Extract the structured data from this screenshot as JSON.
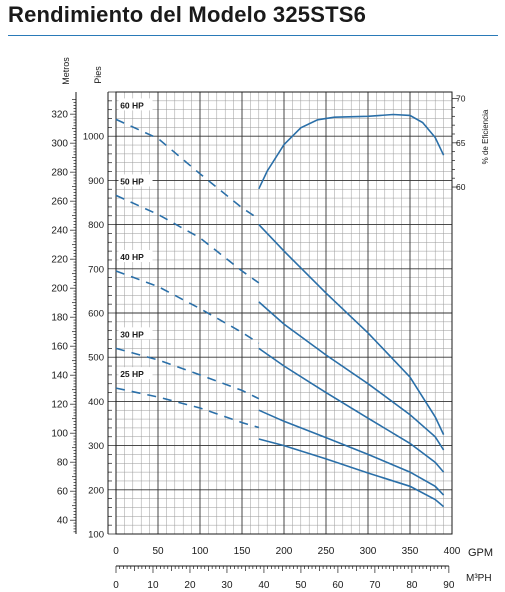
{
  "title": "Rendimiento del Modelo 325STS6",
  "chart_data": {
    "type": "line",
    "title": "Rendimiento del Modelo 325STS6",
    "colors": {
      "curves": "#2a6fa8",
      "grid": "#555555",
      "title_rule": "#2a7ab8"
    },
    "grid": true,
    "x_axis_primary": {
      "label": "GPM",
      "range": [
        0,
        400
      ],
      "ticks": [
        0,
        50,
        100,
        150,
        200,
        250,
        300,
        350,
        400
      ]
    },
    "x_axis_secondary": {
      "label": "M³PH",
      "range": [
        0,
        90
      ],
      "ticks": [
        0,
        10,
        20,
        30,
        40,
        50,
        60,
        70,
        80,
        90
      ]
    },
    "y_axis_feet": {
      "label": "Pies",
      "range": [
        100,
        1100
      ],
      "ticks": [
        100,
        200,
        300,
        400,
        500,
        600,
        700,
        800,
        900,
        1000
      ]
    },
    "y_axis_meters": {
      "label": "Metros",
      "range": [
        40,
        320
      ],
      "ticks": [
        40,
        60,
        80,
        100,
        120,
        140,
        160,
        180,
        200,
        220,
        240,
        260,
        280,
        300,
        320
      ]
    },
    "y_axis_efficiency": {
      "label": "% de Eficiencia",
      "range": [
        0,
        70
      ],
      "ticks": [
        60,
        65,
        70
      ]
    },
    "series": [
      {
        "name": "60 HP",
        "unit": "ft",
        "dashed": [
          [
            0,
            1038
          ],
          [
            50,
            995
          ],
          [
            100,
            915
          ],
          [
            150,
            838
          ],
          [
            170,
            813
          ]
        ],
        "solid": [
          [
            170,
            800
          ],
          [
            200,
            740
          ],
          [
            250,
            645
          ],
          [
            300,
            555
          ],
          [
            350,
            455
          ],
          [
            380,
            365
          ],
          [
            390,
            325
          ]
        ]
      },
      {
        "name": "50 HP",
        "unit": "ft",
        "dashed": [
          [
            0,
            866
          ],
          [
            50,
            823
          ],
          [
            100,
            770
          ],
          [
            150,
            695
          ],
          [
            170,
            668
          ]
        ],
        "solid": [
          [
            170,
            625
          ],
          [
            200,
            575
          ],
          [
            250,
            505
          ],
          [
            300,
            440
          ],
          [
            350,
            370
          ],
          [
            380,
            320
          ],
          [
            390,
            290
          ]
        ]
      },
      {
        "name": "40 HP",
        "unit": "ft",
        "dashed": [
          [
            0,
            695
          ],
          [
            50,
            660
          ],
          [
            100,
            610
          ],
          [
            150,
            556
          ],
          [
            170,
            532
          ]
        ],
        "solid": [
          [
            170,
            520
          ],
          [
            200,
            480
          ],
          [
            250,
            420
          ],
          [
            300,
            362
          ],
          [
            350,
            305
          ],
          [
            380,
            262
          ],
          [
            390,
            240
          ]
        ]
      },
      {
        "name": "30 HP",
        "unit": "ft",
        "dashed": [
          [
            0,
            520
          ],
          [
            50,
            494
          ],
          [
            100,
            460
          ],
          [
            150,
            425
          ],
          [
            170,
            406
          ]
        ],
        "solid": [
          [
            170,
            380
          ],
          [
            200,
            355
          ],
          [
            250,
            318
          ],
          [
            300,
            280
          ],
          [
            350,
            240
          ],
          [
            380,
            208
          ],
          [
            390,
            188
          ]
        ]
      },
      {
        "name": "25 HP",
        "unit": "ft",
        "dashed": [
          [
            0,
            430
          ],
          [
            50,
            410
          ],
          [
            100,
            385
          ],
          [
            150,
            352
          ],
          [
            170,
            341
          ]
        ],
        "solid": [
          [
            170,
            315
          ],
          [
            200,
            300
          ],
          [
            250,
            270
          ],
          [
            300,
            238
          ],
          [
            350,
            208
          ],
          [
            380,
            178
          ],
          [
            390,
            162
          ]
        ]
      },
      {
        "name": "Eficiencia",
        "unit": "%",
        "solid": [
          [
            170,
            59.8
          ],
          [
            180,
            61.8
          ],
          [
            200,
            64.8
          ],
          [
            220,
            66.7
          ],
          [
            240,
            67.6
          ],
          [
            260,
            67.9
          ],
          [
            300,
            68.0
          ],
          [
            330,
            68.2
          ],
          [
            350,
            68.1
          ],
          [
            365,
            67.3
          ],
          [
            380,
            65.6
          ],
          [
            390,
            63.6
          ]
        ]
      }
    ]
  }
}
